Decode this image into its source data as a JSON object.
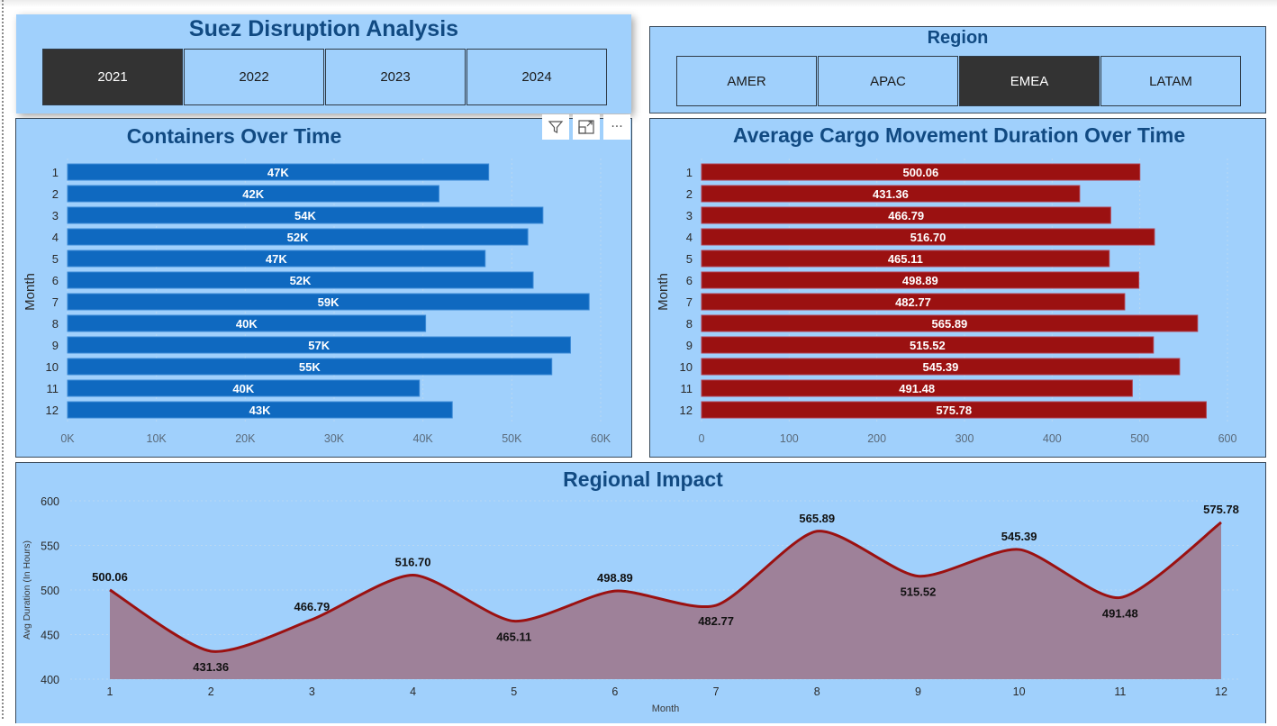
{
  "header": {
    "title": "Suez Disruption Analysis",
    "years": [
      {
        "label": "2021",
        "selected": true
      },
      {
        "label": "2022",
        "selected": false
      },
      {
        "label": "2023",
        "selected": false
      },
      {
        "label": "2024",
        "selected": false
      }
    ]
  },
  "region": {
    "title": "Region",
    "options": [
      {
        "label": "AMER",
        "selected": false
      },
      {
        "label": "APAC",
        "selected": false
      },
      {
        "label": "EMEA",
        "selected": true
      },
      {
        "label": "LATAM",
        "selected": false
      }
    ]
  },
  "visual_header": {
    "icons": [
      "filter-icon",
      "focus-mode-icon",
      "more-options-icon"
    ],
    "more_label": "···"
  },
  "colors": {
    "panel_bg": "#a0d0fc",
    "title": "#114a82",
    "blue_bar": "#0f69c0",
    "red_bar": "#9b1111",
    "area_fill": "#9e8199",
    "area_line": "#9b1111",
    "selected_btn": "#333333"
  },
  "chart_data": [
    {
      "type": "bar",
      "orientation": "horizontal",
      "title": "Containers Over Time",
      "xlabel": "",
      "ylabel": "Month",
      "categories": [
        "1",
        "2",
        "3",
        "4",
        "5",
        "6",
        "7",
        "8",
        "9",
        "10",
        "11",
        "12"
      ],
      "values": [
        47400,
        41800,
        53500,
        51800,
        47000,
        52400,
        58700,
        40300,
        56600,
        54500,
        39600,
        43300
      ],
      "data_labels": [
        "47K",
        "42K",
        "54K",
        "52K",
        "47K",
        "52K",
        "59K",
        "40K",
        "57K",
        "55K",
        "40K",
        "43K"
      ],
      "xlim": [
        0,
        60000
      ],
      "xticks": [
        "0K",
        "10K",
        "20K",
        "30K",
        "40K",
        "50K",
        "60K"
      ],
      "grid": true
    },
    {
      "type": "bar",
      "orientation": "horizontal",
      "title": "Average Cargo Movement Duration Over Time",
      "xlabel": "",
      "ylabel": "Month",
      "categories": [
        "1",
        "2",
        "3",
        "4",
        "5",
        "6",
        "7",
        "8",
        "9",
        "10",
        "11",
        "12"
      ],
      "values": [
        500.06,
        431.36,
        466.79,
        516.7,
        465.11,
        498.89,
        482.77,
        565.89,
        515.52,
        545.39,
        491.48,
        575.78
      ],
      "data_labels": [
        "500.06",
        "431.36",
        "466.79",
        "516.70",
        "465.11",
        "498.89",
        "482.77",
        "565.89",
        "515.52",
        "545.39",
        "491.48",
        "575.78"
      ],
      "xlim": [
        0,
        600
      ],
      "xticks": [
        "0",
        "100",
        "200",
        "300",
        "400",
        "500",
        "600"
      ],
      "grid": true
    },
    {
      "type": "area",
      "title": "Regional Impact",
      "xlabel": "Month",
      "ylabel": "Avg Duration (In Hours)",
      "x": [
        "1",
        "2",
        "3",
        "4",
        "5",
        "6",
        "7",
        "8",
        "9",
        "10",
        "11",
        "12"
      ],
      "values": [
        500.06,
        431.36,
        466.79,
        516.7,
        465.11,
        498.89,
        482.77,
        565.89,
        515.52,
        545.39,
        491.48,
        575.78
      ],
      "data_labels": [
        "500.06",
        "431.36",
        "466.79",
        "516.70",
        "465.11",
        "498.89",
        "482.77",
        "565.89",
        "515.52",
        "545.39",
        "491.48",
        "575.78"
      ],
      "label_positions": [
        "above",
        "below",
        "above",
        "above",
        "below",
        "above",
        "below",
        "above",
        "below",
        "above",
        "below",
        "above"
      ],
      "ylim": [
        400,
        600
      ],
      "yticks": [
        "400",
        "450",
        "500",
        "550",
        "600"
      ],
      "grid": true
    }
  ]
}
